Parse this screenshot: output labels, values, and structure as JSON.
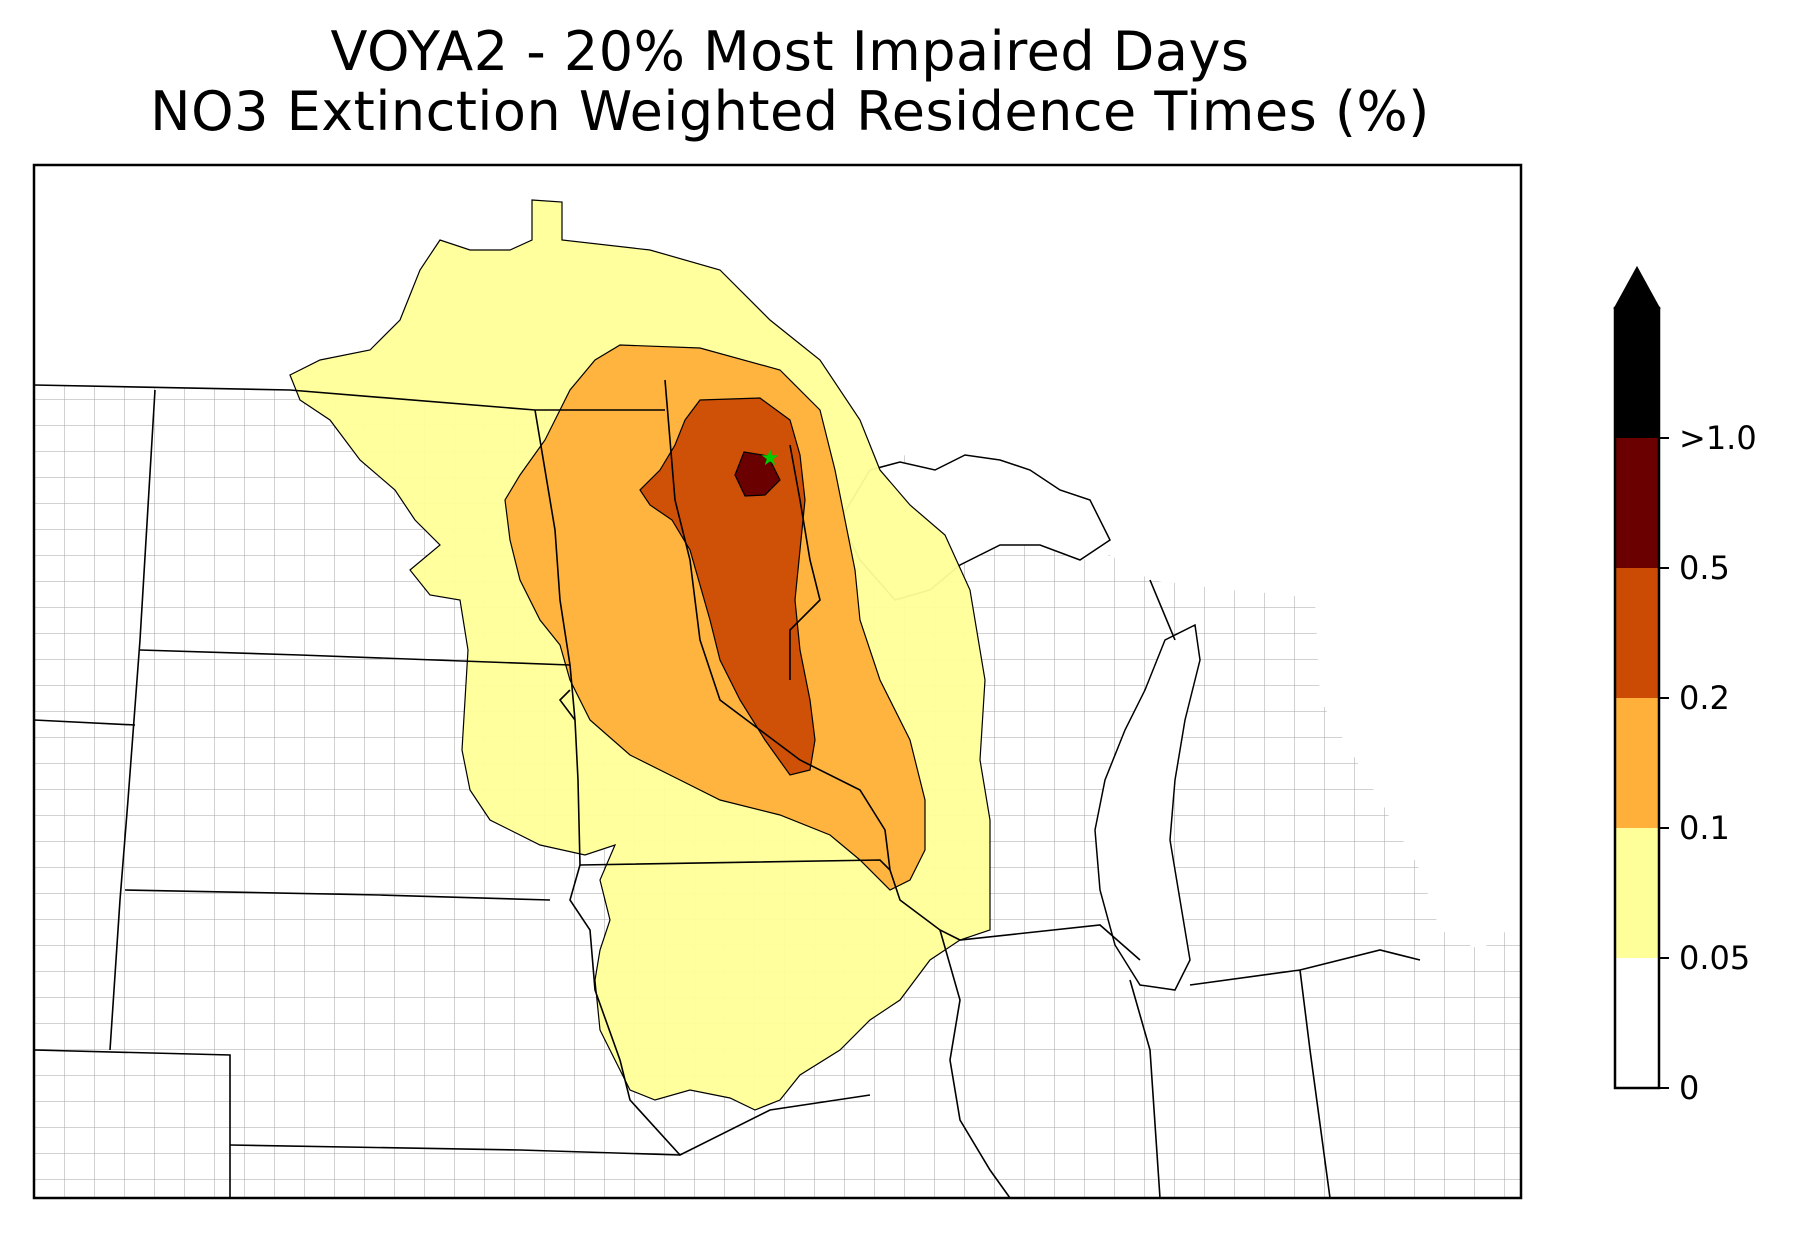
{
  "title": {
    "line1": "VOYA2 - 20% Most Impaired Days",
    "line2": "NO3 Extinction Weighted Residence Times (%)"
  },
  "colorbar": {
    "levels": [
      {
        "label": "0",
        "color": "#ffffff"
      },
      {
        "label": "0.05",
        "color": "#ffff99"
      },
      {
        "label": "0.1",
        "color": "#feb03a"
      },
      {
        "label": "0.2",
        "color": "#cc4b04"
      },
      {
        "label": "0.5",
        "color": "#6b0000"
      },
      {
        "label": ">1.0",
        "color": "#000000"
      }
    ],
    "extend": "max",
    "extend_color": "#000000"
  },
  "map": {
    "region": "Upper Midwest United States",
    "site_marker": {
      "icon": "green-star-icon",
      "color": "#00cc00"
    },
    "state_line_color": "#000000",
    "county_line_color": "#a6a6a6"
  }
}
